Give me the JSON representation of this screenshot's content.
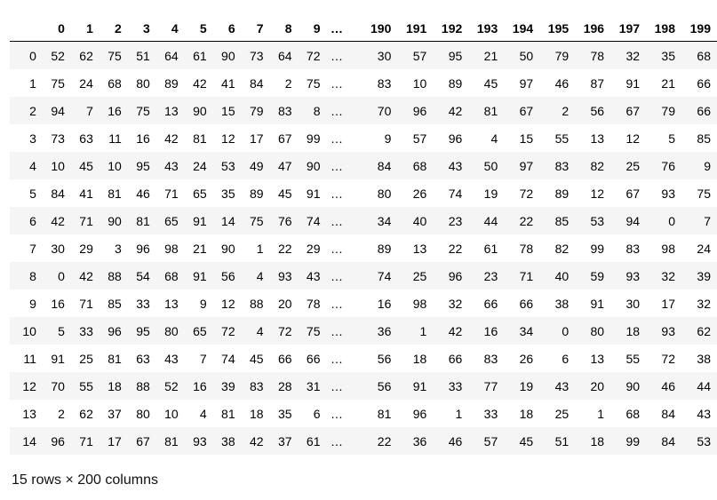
{
  "table": {
    "columns": [
      "0",
      "1",
      "2",
      "3",
      "4",
      "5",
      "6",
      "7",
      "8",
      "9",
      "…",
      "190",
      "191",
      "192",
      "193",
      "194",
      "195",
      "196",
      "197",
      "198",
      "199"
    ],
    "rows": [
      {
        "index": "0",
        "cells": [
          "52",
          "62",
          "75",
          "51",
          "64",
          "61",
          "90",
          "73",
          "64",
          "72",
          "…",
          "30",
          "57",
          "95",
          "21",
          "50",
          "79",
          "78",
          "32",
          "35",
          "68"
        ]
      },
      {
        "index": "1",
        "cells": [
          "75",
          "24",
          "68",
          "80",
          "89",
          "42",
          "41",
          "84",
          "2",
          "75",
          "…",
          "83",
          "10",
          "89",
          "45",
          "97",
          "46",
          "87",
          "91",
          "21",
          "66"
        ]
      },
      {
        "index": "2",
        "cells": [
          "94",
          "7",
          "16",
          "75",
          "13",
          "90",
          "15",
          "79",
          "83",
          "8",
          "…",
          "70",
          "96",
          "42",
          "81",
          "67",
          "2",
          "56",
          "67",
          "79",
          "66"
        ]
      },
      {
        "index": "3",
        "cells": [
          "73",
          "63",
          "11",
          "16",
          "42",
          "81",
          "12",
          "17",
          "67",
          "99",
          "…",
          "9",
          "57",
          "96",
          "4",
          "15",
          "55",
          "13",
          "12",
          "5",
          "85"
        ]
      },
      {
        "index": "4",
        "cells": [
          "10",
          "45",
          "10",
          "95",
          "43",
          "24",
          "53",
          "49",
          "47",
          "90",
          "…",
          "84",
          "68",
          "43",
          "50",
          "97",
          "83",
          "82",
          "25",
          "76",
          "9"
        ]
      },
      {
        "index": "5",
        "cells": [
          "84",
          "41",
          "81",
          "46",
          "71",
          "65",
          "35",
          "89",
          "45",
          "91",
          "…",
          "80",
          "26",
          "74",
          "19",
          "72",
          "89",
          "12",
          "67",
          "93",
          "75"
        ]
      },
      {
        "index": "6",
        "cells": [
          "42",
          "71",
          "90",
          "81",
          "65",
          "91",
          "14",
          "75",
          "76",
          "74",
          "…",
          "34",
          "40",
          "23",
          "44",
          "22",
          "85",
          "53",
          "94",
          "0",
          "7"
        ]
      },
      {
        "index": "7",
        "cells": [
          "30",
          "29",
          "3",
          "96",
          "98",
          "21",
          "90",
          "1",
          "22",
          "29",
          "…",
          "89",
          "13",
          "22",
          "61",
          "78",
          "82",
          "99",
          "83",
          "98",
          "24"
        ]
      },
      {
        "index": "8",
        "cells": [
          "0",
          "42",
          "88",
          "54",
          "68",
          "91",
          "56",
          "4",
          "93",
          "43",
          "…",
          "74",
          "25",
          "96",
          "23",
          "71",
          "40",
          "59",
          "93",
          "32",
          "39"
        ]
      },
      {
        "index": "9",
        "cells": [
          "16",
          "71",
          "85",
          "33",
          "13",
          "9",
          "12",
          "88",
          "20",
          "78",
          "…",
          "16",
          "98",
          "32",
          "66",
          "66",
          "38",
          "91",
          "30",
          "17",
          "32"
        ]
      },
      {
        "index": "10",
        "cells": [
          "5",
          "33",
          "96",
          "95",
          "80",
          "65",
          "72",
          "4",
          "72",
          "75",
          "…",
          "36",
          "1",
          "42",
          "16",
          "34",
          "0",
          "80",
          "18",
          "93",
          "62"
        ]
      },
      {
        "index": "11",
        "cells": [
          "91",
          "25",
          "81",
          "63",
          "43",
          "7",
          "74",
          "45",
          "66",
          "66",
          "…",
          "56",
          "18",
          "66",
          "83",
          "26",
          "6",
          "13",
          "55",
          "72",
          "38"
        ]
      },
      {
        "index": "12",
        "cells": [
          "70",
          "55",
          "18",
          "88",
          "52",
          "16",
          "39",
          "83",
          "28",
          "31",
          "…",
          "56",
          "91",
          "33",
          "77",
          "19",
          "43",
          "20",
          "90",
          "46",
          "44"
        ]
      },
      {
        "index": "13",
        "cells": [
          "2",
          "62",
          "37",
          "80",
          "10",
          "4",
          "81",
          "18",
          "35",
          "6",
          "…",
          "81",
          "96",
          "1",
          "33",
          "18",
          "25",
          "1",
          "68",
          "84",
          "43"
        ]
      },
      {
        "index": "14",
        "cells": [
          "96",
          "71",
          "17",
          "67",
          "81",
          "93",
          "38",
          "42",
          "37",
          "61",
          "…",
          "22",
          "36",
          "46",
          "57",
          "45",
          "51",
          "18",
          "99",
          "84",
          "53"
        ]
      }
    ]
  },
  "shape_note": "15 rows × 200 columns"
}
